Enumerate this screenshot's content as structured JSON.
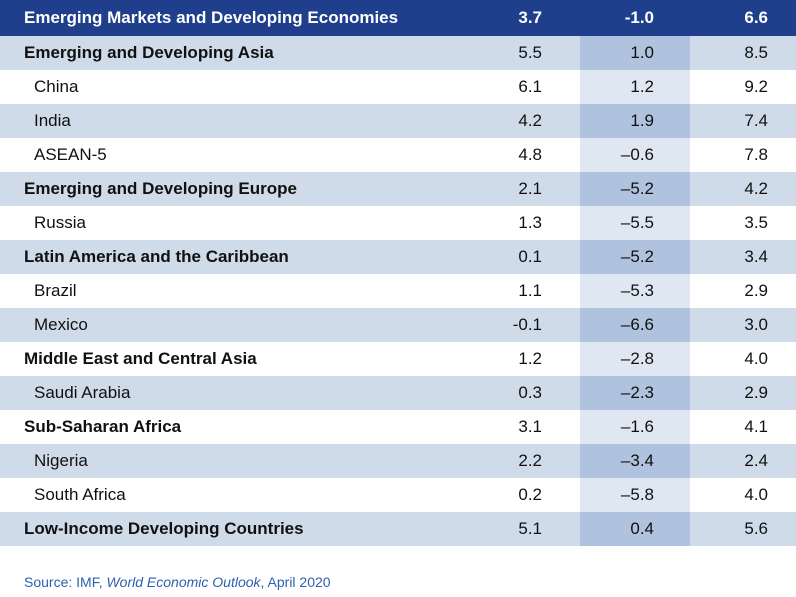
{
  "header": {
    "label": "Emerging Markets and Developing Economies",
    "v1": "3.7",
    "v2": "-1.0",
    "v3": "6.6"
  },
  "rows": [
    {
      "label": "Emerging and Developing Asia",
      "type": "group",
      "v1": "5.5",
      "v2": "1.0",
      "v3": "8.5"
    },
    {
      "label": "China",
      "type": "indent",
      "v1": "6.1",
      "v2": "1.2",
      "v3": "9.2"
    },
    {
      "label": "India",
      "type": "indent",
      "v1": "4.2",
      "v2": "1.9",
      "v3": "7.4"
    },
    {
      "label": "ASEAN-5",
      "type": "indent",
      "v1": "4.8",
      "v2": "–0.6",
      "v3": "7.8"
    },
    {
      "label": "Emerging and Developing Europe",
      "type": "group",
      "v1": "2.1",
      "v2": "–5.2",
      "v3": "4.2"
    },
    {
      "label": "Russia",
      "type": "indent",
      "v1": "1.3",
      "v2": "–5.5",
      "v3": "3.5"
    },
    {
      "label": "Latin America and the Caribbean",
      "type": "group",
      "v1": "0.1",
      "v2": "–5.2",
      "v3": "3.4"
    },
    {
      "label": "Brazil",
      "type": "indent",
      "v1": "1.1",
      "v2": "–5.3",
      "v3": "2.9"
    },
    {
      "label": "Mexico",
      "type": "indent",
      "v1": "-0.1",
      "v2": "–6.6",
      "v3": "3.0"
    },
    {
      "label": "Middle East and Central Asia",
      "type": "group",
      "v1": "1.2",
      "v2": "–2.8",
      "v3": "4.0"
    },
    {
      "label": "Saudi Arabia",
      "type": "indent",
      "v1": "0.3",
      "v2": "–2.3",
      "v3": "2.9"
    },
    {
      "label": "Sub-Saharan Africa",
      "type": "group",
      "v1": "3.1",
      "v2": "–1.6",
      "v3": "4.1"
    },
    {
      "label": "Nigeria",
      "type": "indent",
      "v1": "2.2",
      "v2": "–3.4",
      "v3": "2.4"
    },
    {
      "label": "South Africa",
      "type": "indent",
      "v1": "0.2",
      "v2": "–5.8",
      "v3": "4.0"
    },
    {
      "label": "Low-Income Developing Countries",
      "type": "group",
      "v1": "5.1",
      "v2": "0.4",
      "v3": "5.6"
    }
  ],
  "source": {
    "prefix": "Source: IMF, ",
    "publication": "World Economic Outlook",
    "suffix": ", April 2020"
  },
  "colors": {
    "header_bg": "#1f3f8c",
    "row_shaded": "#cfdbe9",
    "col_dark": "#afc3de",
    "col_light": "#dfe8f2",
    "source_text": "#2f5fb0"
  }
}
